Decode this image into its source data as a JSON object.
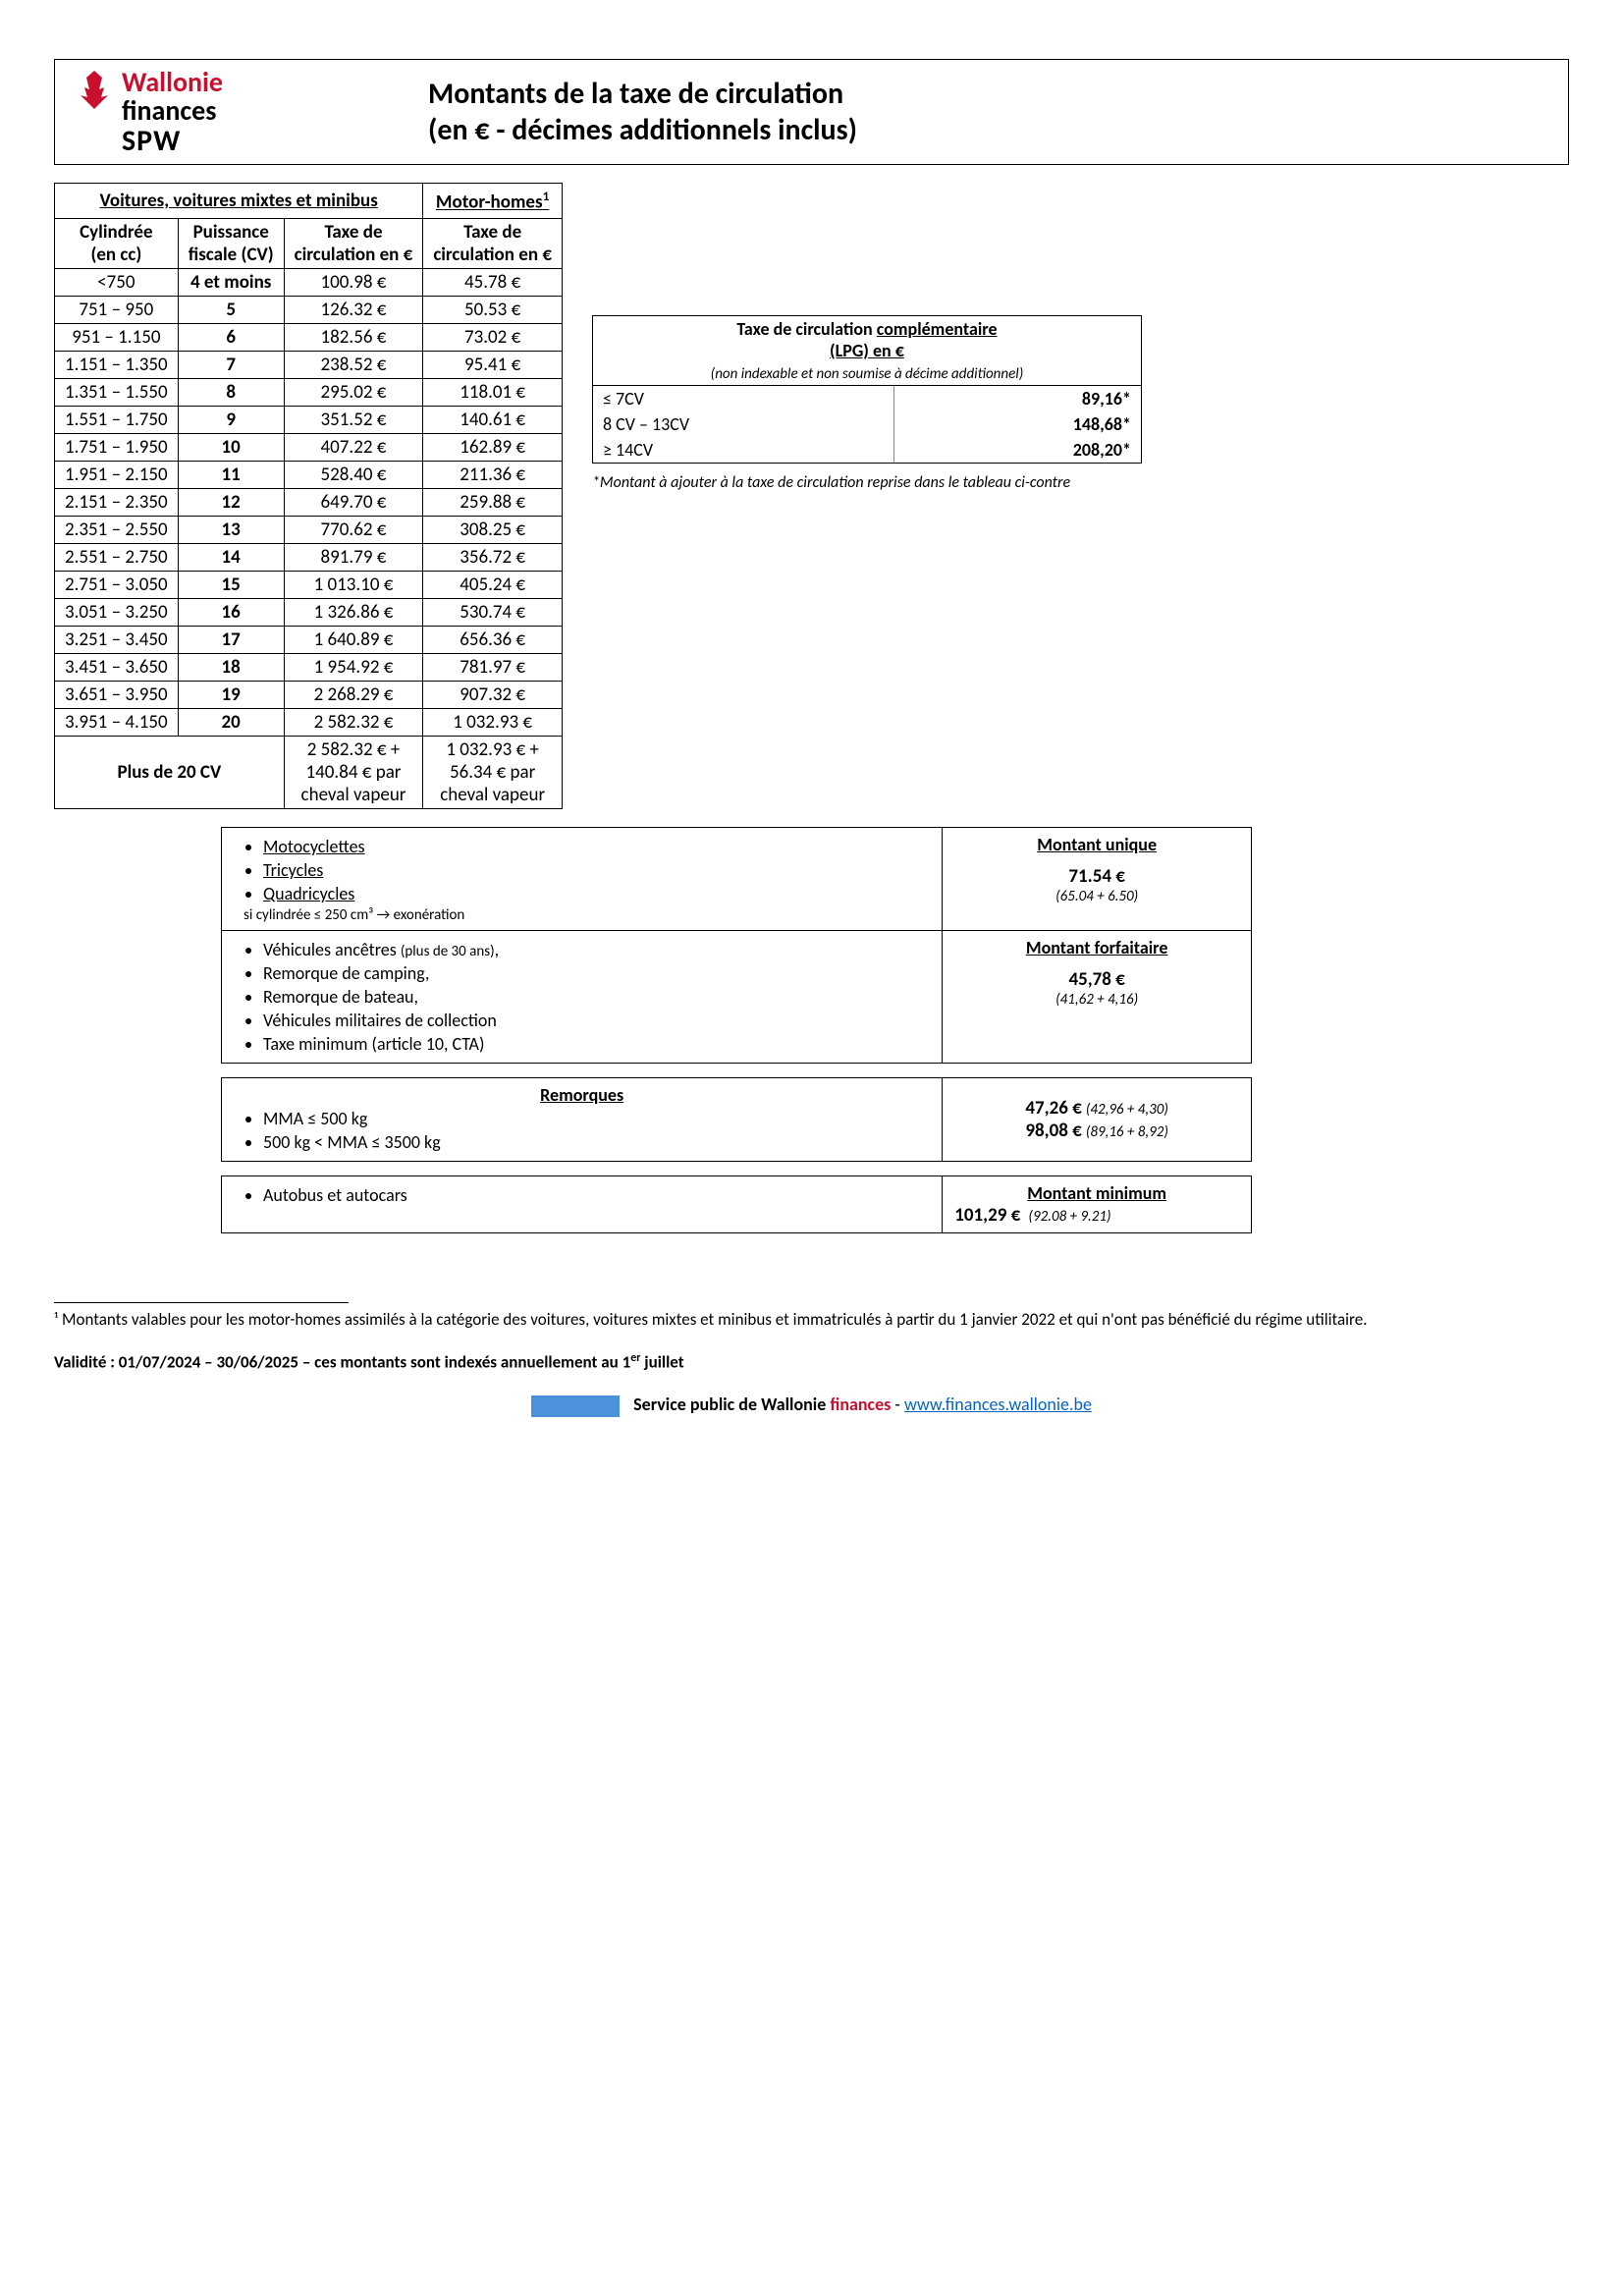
{
  "logo": {
    "line1": "Wallonie",
    "line2": "finances",
    "line3": "SPW"
  },
  "title1": "Montants de la taxe de circulation",
  "title2": "(en € - décimes additionnels inclus)",
  "mainHeaders": {
    "group1": "Voitures, voitures mixtes et minibus",
    "group2": "Motor-homes",
    "sup": "1",
    "col1a": "Cylindrée",
    "col1b": "(en cc)",
    "col2a": "Puissance",
    "col2b": "fiscale (CV)",
    "col3a": "Taxe de",
    "col3b": "circulation en €",
    "col4a": "Taxe de",
    "col4b": "circulation en €"
  },
  "rows": [
    {
      "cc": "<750",
      "cv": "4 et moins",
      "tax": "100.98 €",
      "motor": "45.78 €"
    },
    {
      "cc": "751 – 950",
      "cv": "5",
      "tax": "126.32 €",
      "motor": "50.53 €"
    },
    {
      "cc": "951 – 1.150",
      "cv": "6",
      "tax": "182.56 €",
      "motor": "73.02 €"
    },
    {
      "cc": "1.151 – 1.350",
      "cv": "7",
      "tax": "238.52 €",
      "motor": "95.41 €"
    },
    {
      "cc": "1.351 – 1.550",
      "cv": "8",
      "tax": "295.02 €",
      "motor": "118.01 €"
    },
    {
      "cc": "1.551 – 1.750",
      "cv": "9",
      "tax": "351.52 €",
      "motor": "140.61 €"
    },
    {
      "cc": "1.751 – 1.950",
      "cv": "10",
      "tax": "407.22 €",
      "motor": "162.89 €"
    },
    {
      "cc": "1.951 – 2.150",
      "cv": "11",
      "tax": "528.40 €",
      "motor": "211.36 €"
    },
    {
      "cc": "2.151 – 2.350",
      "cv": "12",
      "tax": "649.70 €",
      "motor": "259.88 €"
    },
    {
      "cc": "2.351 – 2.550",
      "cv": "13",
      "tax": "770.62 €",
      "motor": "308.25 €"
    },
    {
      "cc": "2.551 – 2.750",
      "cv": "14",
      "tax": "891.79 €",
      "motor": "356.72 €"
    },
    {
      "cc": "2.751 – 3.050",
      "cv": "15",
      "tax": "1 013.10 €",
      "motor": "405.24 €"
    },
    {
      "cc": "3.051 – 3.250",
      "cv": "16",
      "tax": "1 326.86 €",
      "motor": "530.74 €"
    },
    {
      "cc": "3.251 – 3.450",
      "cv": "17",
      "tax": "1 640.89 €",
      "motor": "656.36 €"
    },
    {
      "cc": "3.451 – 3.650",
      "cv": "18",
      "tax": "1 954.92 €",
      "motor": "781.97 €"
    },
    {
      "cc": "3.651 – 3.950",
      "cv": "19",
      "tax": "2 268.29 €",
      "motor": "907.32 €"
    },
    {
      "cc": "3.951 – 4.150",
      "cv": "20",
      "tax": "2 582.32 €",
      "motor": "1 032.93 €"
    }
  ],
  "lastRow": {
    "label": "Plus de 20 CV",
    "tax1": "2 582.32 € +",
    "tax2": "140.84 € par",
    "tax3": "cheval vapeur",
    "motor1": "1 032.93 € +",
    "motor2": "56.34 € par",
    "motor3": "cheval vapeur"
  },
  "lpg": {
    "title1": "Taxe de circulation ",
    "title1u": "complémentaire",
    "title2": "(LPG) en €",
    "sub": "(non indexable et non soumise à décime additionnel)",
    "rows": [
      {
        "label": "≤ 7CV",
        "val": "89,16*"
      },
      {
        "label": "8 CV – 13CV",
        "val": "148,68*"
      },
      {
        "label": "≥ 14CV",
        "val": "208,20*"
      }
    ],
    "note": "*Montant à ajouter à la taxe de circulation reprise dans le tableau ci-contre"
  },
  "unique": {
    "head": "Montant unique",
    "items": [
      "Motocyclettes",
      "Tricycles",
      "Quadricycles"
    ],
    "cond": "si cylindrée ≤ 250 cm³ → exonération",
    "val": "71.54 €",
    "detail": "(65.04 + 6.50)"
  },
  "forfait": {
    "head": "Montant forfaitaire",
    "items": [
      "Véhicules ancêtres (plus de 30 ans),",
      "Remorque de camping,",
      "Remorque de bateau,",
      "Véhicules militaires de collection",
      "Taxe minimum (article 10, CTA)"
    ],
    "val": "45,78 €",
    "detail": "(41,62 + 4,16)"
  },
  "remorques": {
    "head": "Remorques",
    "items": [
      "MMA ≤ 500 kg",
      "500 kg < MMA ≤ 3500 kg"
    ],
    "val1": "47,26 €",
    "det1": "(42,96 + 4,30)",
    "val2": "98,08 €",
    "det2": "(89,16 + 8,92)"
  },
  "autobus": {
    "item": "Autobus et autocars",
    "head": "Montant minimum",
    "val": "101,29 €",
    "detail": "(92.08 + 9.21)"
  },
  "footnote": "¹ Montants valables pour les motor-homes assimilés à la catégorie des voitures, voitures mixtes et minibus et immatriculés à partir du 1 janvier 2022 et qui n'ont pas bénéficié du régime utilitaire.",
  "validity": "Validité : 01/07/2024 – 30/06/2025 – ces montants sont indexés annuellement au 1er juillet",
  "footer": {
    "label": "Service public de Wallonie ",
    "fin": "finances",
    "sep": "   -  ",
    "link": "www.finances.wallonie.be"
  }
}
